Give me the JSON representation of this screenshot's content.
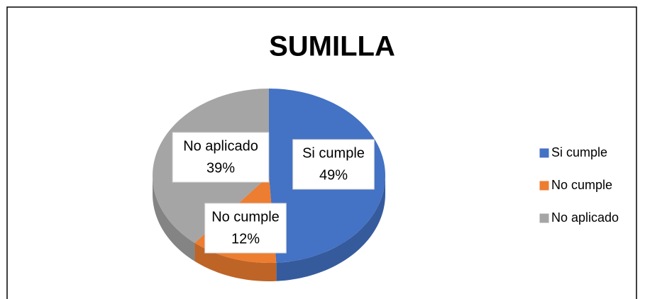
{
  "chart_data": {
    "type": "pie",
    "title": "SUMILLA",
    "categories": [
      "Si cumple",
      "No cumple",
      "No aplicado"
    ],
    "values": [
      49,
      12,
      39
    ],
    "value_labels": [
      "49%",
      "12%",
      "39%"
    ],
    "colors": [
      "#4472c4",
      "#ed7d31",
      "#a5a5a5"
    ],
    "legend": "right"
  }
}
